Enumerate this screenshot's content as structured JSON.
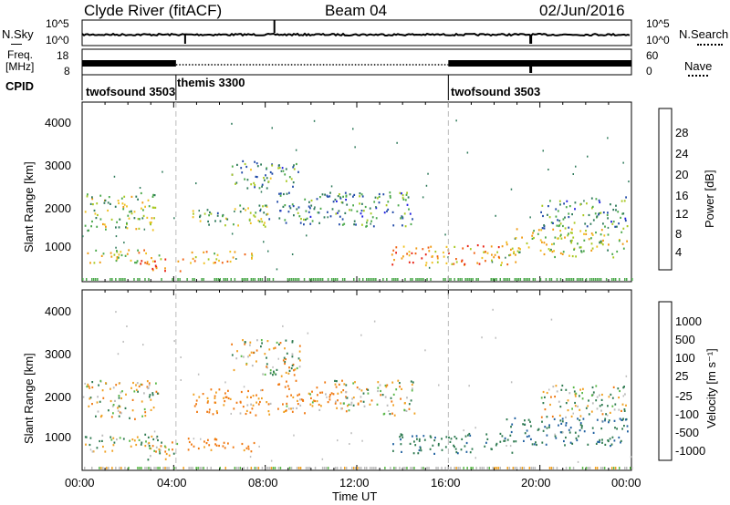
{
  "header": {
    "station": "Clyde River (fitACF)",
    "beam": "Beam 04",
    "date": "02/Jun/2016"
  },
  "nsky_panel": {
    "left_label": "N.Sky",
    "right_label": "N.Search",
    "left_ticks": [
      "10^5",
      "10^0"
    ],
    "right_ticks": [
      "10^5",
      "10^0"
    ]
  },
  "freq_panel": {
    "left_label_line1": "Freq.",
    "left_label_line2": "[MHz]",
    "left_ticks": [
      "18",
      "8"
    ],
    "right_ticks": [
      "60",
      "0"
    ],
    "right_label": "Nave"
  },
  "cpid_panel": {
    "label": "CPID",
    "segments": [
      {
        "name": "twofsound 3503",
        "start_hour": 0.0,
        "end_hour": 4.1
      },
      {
        "name": "themis 3300",
        "start_hour": 4.1,
        "end_hour": 16.0
      },
      {
        "name": "twofsound 3503",
        "start_hour": 16.0,
        "end_hour": 24.0
      }
    ]
  },
  "power_panel": {
    "ylabel": "Slant Range [km]",
    "yticks": [
      "4000",
      "3000",
      "2000",
      "1000"
    ],
    "colorbar_label": "Power [dB]",
    "colorbar_ticks": [
      "28",
      "24",
      "20",
      "16",
      "12",
      "8",
      "4"
    ],
    "colors": [
      "#2020e0",
      "#204aa8",
      "#2e7a5a",
      "#4aa84a",
      "#a8c820",
      "#f0c020",
      "#f09a10",
      "#f06010",
      "#e82010"
    ]
  },
  "velocity_panel": {
    "ylabel": "Slant Range [km]",
    "yticks": [
      "4000",
      "3000",
      "2000",
      "1000"
    ],
    "colorbar_label": "Velocity [m s⁻¹]",
    "colorbar_ticks": [
      "1000",
      "500",
      "100",
      "25",
      "-25",
      "-100",
      "-500",
      "-1000"
    ],
    "colors": [
      "#1a3aa8",
      "#2060a0",
      "#2e7a50",
      "#5ab848",
      "#bcbcbc",
      "#f0a020",
      "#f07810",
      "#e83010"
    ]
  },
  "xaxis": {
    "title": "Time UT",
    "ticks": [
      "00:00",
      "04:00",
      "08:00",
      "12:00",
      "16:00",
      "20:00",
      "00:00"
    ]
  },
  "chart_data": {
    "type": "heatmap",
    "title": "Clyde River (fitACF)",
    "xlabel": "Time UT",
    "ylabel": "Slant Range [km]",
    "x_range_hours": [
      0,
      24
    ],
    "y_range_km": [
      180,
      4600
    ],
    "panels": [
      {
        "name": "Power",
        "units": "dB",
        "scale": [
          0,
          30
        ],
        "regions": [
          {
            "t0": 0.1,
            "t1": 3.3,
            "r0": 1450,
            "r1": 2400,
            "level": 14
          },
          {
            "t0": 0.1,
            "t1": 3.5,
            "r0": 650,
            "r1": 1000,
            "level": 18
          },
          {
            "t0": 2.5,
            "t1": 4.4,
            "r0": 450,
            "r1": 800,
            "level": 26
          },
          {
            "t0": 4.5,
            "t1": 7.5,
            "r0": 650,
            "r1": 950,
            "level": 20
          },
          {
            "t0": 4.8,
            "t1": 8.2,
            "r0": 1550,
            "r1": 2100,
            "level": 12
          },
          {
            "t0": 6.5,
            "t1": 9.5,
            "r0": 2500,
            "r1": 3200,
            "level": 10
          },
          {
            "t0": 8.5,
            "t1": 11.5,
            "r0": 1600,
            "r1": 2400,
            "level": 8
          },
          {
            "t0": 11.0,
            "t1": 14.5,
            "r0": 1550,
            "r1": 2400,
            "level": 9
          },
          {
            "t0": 13.5,
            "t1": 19.0,
            "r0": 600,
            "r1": 1100,
            "level": 22
          },
          {
            "t0": 18.5,
            "t1": 23.8,
            "r0": 800,
            "r1": 1500,
            "level": 16
          },
          {
            "t0": 20.0,
            "t1": 23.8,
            "r0": 1500,
            "r1": 2300,
            "level": 9
          }
        ]
      },
      {
        "name": "Velocity",
        "units": "m s⁻¹",
        "scale": [
          -1000,
          1000
        ],
        "regions": [
          {
            "t0": 0.1,
            "t1": 3.3,
            "r0": 1450,
            "r1": 2400,
            "level": 0
          },
          {
            "t0": 0.1,
            "t1": 3.5,
            "r0": 650,
            "r1": 1100,
            "level": 60
          },
          {
            "t0": 2.5,
            "t1": 4.4,
            "r0": 450,
            "r1": 900,
            "level": 0
          },
          {
            "t0": 4.5,
            "t1": 7.5,
            "r0": 650,
            "r1": 1000,
            "level": -200
          },
          {
            "t0": 4.8,
            "t1": 8.2,
            "r0": 1550,
            "r1": 2200,
            "level": -150
          },
          {
            "t0": 6.5,
            "t1": 9.5,
            "r0": 2500,
            "r1": 3400,
            "level": 0
          },
          {
            "t0": 8.5,
            "t1": 11.5,
            "r0": 1600,
            "r1": 2400,
            "level": -120
          },
          {
            "t0": 11.0,
            "t1": 14.5,
            "r0": 1550,
            "r1": 2400,
            "level": 0
          },
          {
            "t0": 13.5,
            "t1": 19.0,
            "r0": 600,
            "r1": 1100,
            "level": 200
          },
          {
            "t0": 18.5,
            "t1": 23.8,
            "r0": 800,
            "r1": 1500,
            "level": 300
          },
          {
            "t0": 20.0,
            "t1": 23.8,
            "r0": 1500,
            "r1": 2300,
            "level": 0
          }
        ]
      }
    ]
  }
}
